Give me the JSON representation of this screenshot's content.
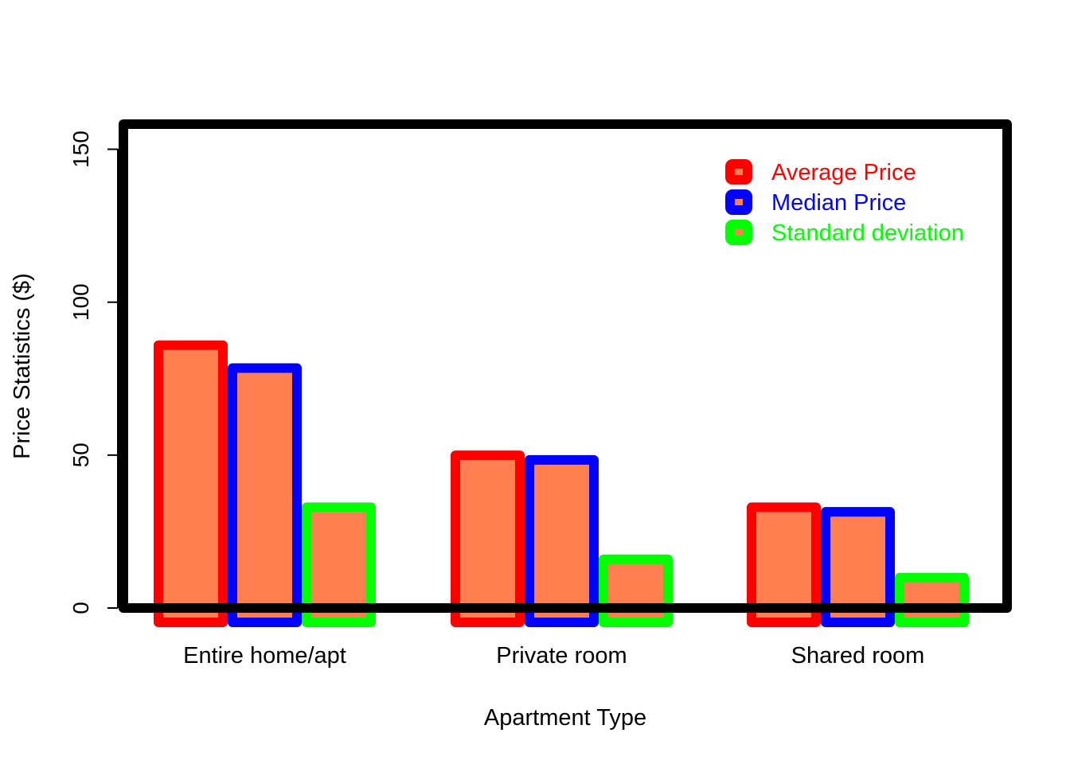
{
  "chart_data": {
    "type": "bar",
    "title": "",
    "xlabel": "Apartment Type",
    "ylabel": "Price Statistics ($)",
    "categories": [
      "Entire home/apt",
      "Private room",
      "Shared room"
    ],
    "series": [
      {
        "name": "Average Price",
        "values": [
          87.5,
          51.5,
          34.5
        ],
        "border_color": "#ff0000"
      },
      {
        "name": "Median Price",
        "values": [
          80,
          50,
          33
        ],
        "border_color": "#0000ff"
      },
      {
        "name": "Standard deviation",
        "values": [
          34.5,
          17.5,
          11.5
        ],
        "border_color": "#00ff00"
      }
    ],
    "fill_color": "#ff7f50",
    "ylim": [
      0,
      158
    ],
    "y_ticks": [
      0,
      50,
      100,
      150
    ],
    "y_tick_labels": [
      "0",
      "50",
      "100",
      "150"
    ],
    "legend_position": "top-right",
    "grid": false
  }
}
